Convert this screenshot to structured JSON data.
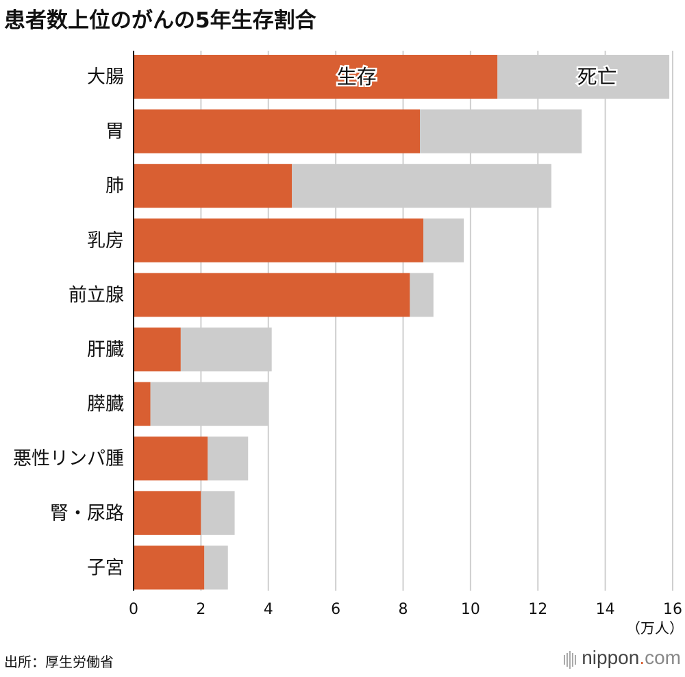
{
  "title": "患者数上位のがんの5年生存割合",
  "source": "出所：厚生労働省",
  "logo": {
    "name": "nippon",
    "dot": ".",
    "tld": "com"
  },
  "colors": {
    "survive": "#d95f32",
    "death": "#cccccc",
    "grid": "#cfcfcf",
    "axis": "#111111"
  },
  "chart_data": {
    "type": "bar",
    "orientation": "horizontal",
    "stacked": true,
    "title": "患者数上位のがんの5年生存割合",
    "unit_label": "（万人）",
    "categories": [
      "大腸",
      "胃",
      "肺",
      "乳房",
      "前立腺",
      "肝臓",
      "膵臓",
      "悪性リンパ腫",
      "腎・尿路",
      "子宮"
    ],
    "series": [
      {
        "name": "生存",
        "values": [
          10.8,
          8.5,
          4.7,
          8.6,
          8.2,
          1.4,
          0.5,
          2.2,
          2.0,
          2.1
        ]
      },
      {
        "name": "死亡",
        "values": [
          5.1,
          4.8,
          7.7,
          1.2,
          0.7,
          2.7,
          3.5,
          1.2,
          1.0,
          0.7
        ]
      }
    ],
    "xlim": [
      0,
      16
    ],
    "xticks": [
      "0",
      "2",
      "4",
      "6",
      "8",
      "10",
      "12",
      "14",
      "16"
    ],
    "grid": true,
    "legend": "inline-first-bar"
  }
}
